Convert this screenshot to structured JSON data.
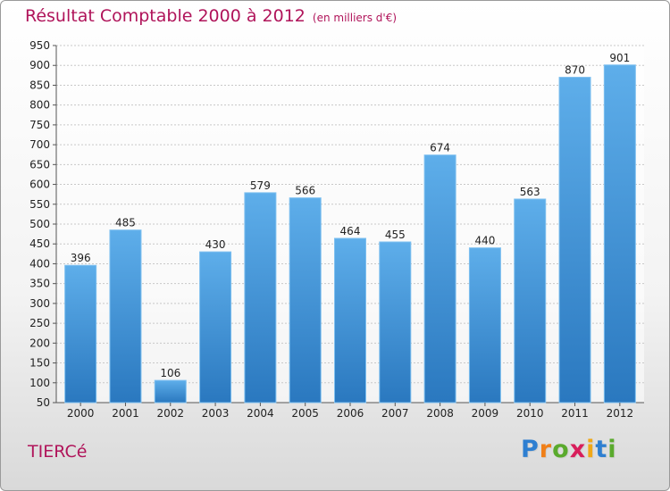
{
  "chart_data": {
    "type": "bar",
    "title": "Résultat Comptable 2000 à 2012",
    "subtitle": "(en milliers d'€)",
    "categories": [
      "2000",
      "2001",
      "2002",
      "2003",
      "2004",
      "2005",
      "2006",
      "2007",
      "2008",
      "2009",
      "2010",
      "2011",
      "2012"
    ],
    "values": [
      396,
      485,
      106,
      430,
      579,
      566,
      464,
      455,
      674,
      440,
      563,
      870,
      901
    ],
    "ylim": [
      50,
      950
    ],
    "yticks": [
      50,
      100,
      150,
      200,
      250,
      300,
      350,
      400,
      450,
      500,
      550,
      600,
      650,
      700,
      750,
      800,
      850,
      900,
      950
    ],
    "xlabel": "",
    "ylabel": "",
    "grid": true,
    "bar_color": "#3d8fd6"
  },
  "commune": "TIERCé",
  "brand": {
    "letters": [
      "P",
      "r",
      "o",
      "x",
      "i",
      "t",
      "i"
    ],
    "colors": [
      "#2e7fd1",
      "#f07f18",
      "#5aaa2d",
      "#d81e5b",
      "#f0a818",
      "#2e7fd1",
      "#5aaa2d"
    ]
  }
}
